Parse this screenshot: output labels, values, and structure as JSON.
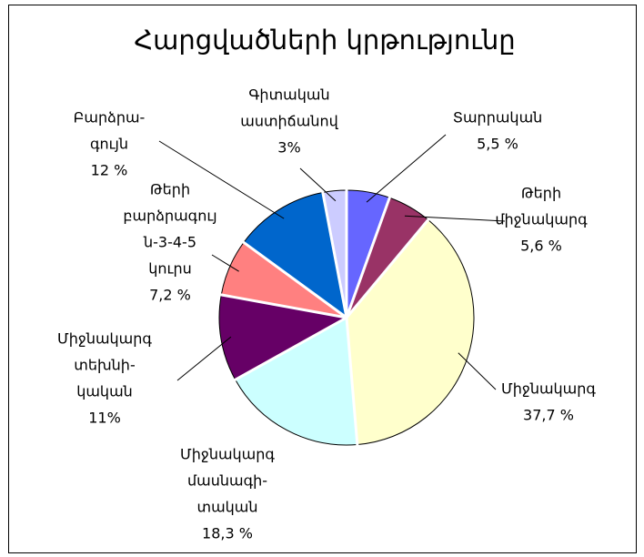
{
  "chart_data": {
    "type": "pie",
    "title": "Հարցվածների կրթությունը",
    "categories": [
      [
        "Տարրական"
      ],
      [
        "Թերի",
        "միջնակարգ"
      ],
      [
        "Միջնակարգ"
      ],
      [
        "Միջնակարգ",
        "մասնագի-",
        "տական"
      ],
      [
        "Միջնակարգ",
        "տեխնի-",
        "կական"
      ],
      [
        "Թերի",
        "բարձրագույ",
        "ն-3-4-5",
        "կուրս"
      ],
      [
        "Բարձրա-",
        "գույն"
      ],
      [
        "Գիտական",
        "աստիճանով"
      ]
    ],
    "values": [
      5.5,
      5.6,
      37.7,
      18.3,
      11,
      7.2,
      12,
      3
    ],
    "value_labels": [
      "5,5 %",
      "5,6 %",
      "37,7 %",
      "18,3 %",
      "11%",
      "7,2 %",
      "12 %",
      "3%"
    ],
    "colors": [
      "#6666ff",
      "#993366",
      "#ffffcc",
      "#ccffff",
      "#660066",
      "#ff8080",
      "#0066cc",
      "#ccccff"
    ]
  }
}
